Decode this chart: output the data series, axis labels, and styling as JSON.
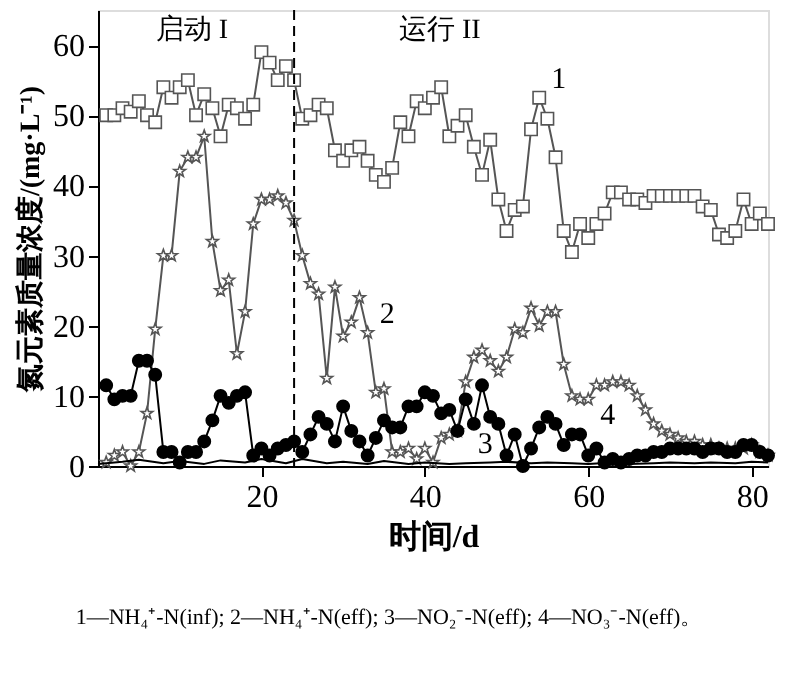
{
  "chart_data": {
    "type": "line",
    "xlabel": "时间/d",
    "ylabel": "氮元素质量浓度/(mg·L⁻¹)",
    "xlim": [
      0,
      82
    ],
    "ylim": [
      0,
      65
    ],
    "xticks": [
      20,
      40,
      60,
      80
    ],
    "yticks": [
      0,
      10,
      20,
      30,
      40,
      50,
      60
    ],
    "grid": false,
    "line_style": "solid",
    "ref_lines": [
      {
        "axis": "x",
        "value": 24,
        "line_style": "dashed",
        "color": "#000000"
      }
    ],
    "annotations": [
      "启动 I",
      "运行 II",
      {
        "text": "1",
        "x": 54,
        "y": 52.5
      },
      {
        "text": "2",
        "x": 33,
        "y": 19
      },
      {
        "text": "3",
        "x": 45,
        "y": 0.4
      },
      {
        "text": "4",
        "x": 60,
        "y": 4.5
      },
      "1—NH₄⁺-N(inf); 2—NH₄⁺-N(eff); 3—NO₂⁻-N(eff); 4—NO₃⁻-N(eff)。"
    ],
    "series": [
      {
        "color": "#555555",
        "marker": "square",
        "x": [
          1,
          2,
          3,
          4,
          5,
          6,
          7,
          8,
          9,
          10,
          11,
          12,
          13,
          14,
          15,
          16,
          17,
          18,
          19,
          20,
          21,
          22,
          23,
          24,
          25,
          26,
          27,
          28,
          29,
          30,
          31,
          32,
          33,
          34,
          35,
          36,
          37,
          38,
          39,
          40,
          41,
          42,
          43,
          44,
          45,
          46,
          47,
          48,
          49,
          50,
          51,
          52,
          53,
          54,
          55,
          56,
          57,
          58,
          59,
          60,
          61,
          62,
          63,
          64,
          65,
          66,
          67,
          68,
          69,
          70,
          71,
          72,
          73,
          74,
          75,
          76,
          77,
          78,
          79,
          80,
          81,
          82
        ],
        "values": [
          50,
          50,
          51,
          50.5,
          52,
          50,
          49,
          54,
          52.5,
          54,
          55,
          50,
          53,
          51,
          47,
          51.5,
          51,
          49.5,
          51.5,
          59,
          57.5,
          55,
          57,
          55,
          49.5,
          50,
          51.5,
          51,
          45,
          43.5,
          45,
          45.5,
          43.5,
          41.5,
          40.5,
          42.5,
          49,
          47,
          52,
          51,
          52.5,
          54,
          47,
          48.5,
          50,
          45.5,
          41.5,
          46.5,
          38,
          33.5,
          36.5,
          37,
          48,
          52.5,
          49.5,
          44,
          33.5,
          30.5,
          34.5,
          32.5,
          34.5,
          36,
          39,
          39,
          38,
          38,
          37.5,
          38.5,
          38.5,
          38.5,
          38.5,
          38.5,
          38.5,
          37,
          36.5,
          33,
          32.5,
          33.5,
          38,
          34.5,
          36,
          34.5
        ]
      },
      {
        "color": "#555555",
        "marker": "star",
        "x": [
          1,
          2,
          3,
          4,
          5,
          6,
          7,
          8,
          9,
          10,
          11,
          12,
          13,
          14,
          15,
          16,
          17,
          18,
          19,
          20,
          21,
          22,
          23,
          24,
          25,
          26,
          27,
          28,
          29,
          30,
          31,
          32,
          33,
          34,
          35,
          36,
          37,
          38,
          39,
          40,
          41,
          42,
          43,
          44,
          45,
          46,
          47,
          48,
          49,
          50,
          51,
          52,
          53,
          54,
          55,
          56,
          57,
          58,
          59,
          60,
          61,
          62,
          63,
          64,
          65,
          66,
          67,
          68,
          69,
          70,
          71,
          72,
          73,
          74,
          75,
          76,
          77,
          78,
          79,
          80,
          81,
          82
        ],
        "values": [
          0.5,
          1.5,
          2,
          0,
          2,
          7.5,
          19.5,
          30,
          30,
          42,
          44,
          44,
          47,
          32,
          25,
          26.5,
          16,
          22,
          34.5,
          38,
          38,
          38.5,
          37.5,
          35,
          30,
          26,
          24.5,
          12.5,
          25.5,
          18.5,
          20.5,
          24,
          19,
          10.5,
          11,
          2,
          2,
          2.5,
          1,
          2.5,
          0.5,
          4,
          4.5,
          5,
          12,
          15.5,
          16.5,
          15,
          13.5,
          15.5,
          19.5,
          19,
          22.5,
          20,
          22,
          22,
          14.5,
          10,
          9.5,
          9.5,
          11.5,
          11.5,
          12,
          12,
          11.5,
          10,
          8,
          6,
          5,
          4.5,
          4,
          3.5,
          3.5,
          3,
          3,
          2.5,
          2.5,
          2.5,
          2.5,
          3,
          2,
          1.5
        ]
      },
      {
        "color": "#000000",
        "marker": "none",
        "x": [
          0,
          3,
          5,
          8,
          10,
          13,
          15,
          18,
          20,
          23,
          25,
          28,
          30,
          33,
          35,
          38,
          40,
          43,
          45,
          48,
          50,
          53,
          55,
          58,
          60,
          63,
          65,
          68,
          70,
          73,
          75,
          78,
          80,
          82
        ],
        "values": [
          0.3,
          0.6,
          0.9,
          0.4,
          0.7,
          0.3,
          0.8,
          0.5,
          1,
          0.4,
          1,
          0.4,
          0.6,
          0.3,
          0.7,
          0.3,
          0.5,
          0.3,
          0.4,
          0.5,
          0.6,
          0.4,
          0.5,
          0.4,
          0.3,
          0.5,
          0.3,
          0.4,
          0.5,
          0.4,
          0.5,
          0.4,
          0.6,
          0.5
        ]
      },
      {
        "color": "#000000",
        "marker": "circle",
        "x": [
          1,
          2,
          3,
          4,
          5,
          6,
          7,
          8,
          9,
          10,
          11,
          12,
          13,
          14,
          15,
          16,
          17,
          18,
          19,
          20,
          21,
          22,
          23,
          24,
          25,
          26,
          27,
          28,
          29,
          30,
          31,
          32,
          33,
          34,
          35,
          36,
          37,
          38,
          39,
          40,
          41,
          42,
          43,
          44,
          45,
          46,
          47,
          48,
          49,
          50,
          51,
          52,
          53,
          54,
          55,
          56,
          57,
          58,
          59,
          60,
          61,
          62,
          63,
          64,
          65,
          66,
          67,
          68,
          69,
          70,
          71,
          72,
          73,
          74,
          75,
          76,
          77,
          78,
          79,
          80,
          81,
          82
        ],
        "values": [
          11.5,
          9.5,
          10,
          10,
          15,
          15,
          13,
          2,
          2,
          0.5,
          2,
          2,
          3.5,
          6.5,
          10,
          9,
          10,
          10.5,
          1.5,
          2.5,
          1.5,
          2.5,
          3,
          3.5,
          2,
          4.5,
          7,
          6,
          3.5,
          8.5,
          5,
          3.5,
          1.5,
          4,
          6.5,
          5.5,
          5.5,
          8.5,
          8.5,
          10.5,
          10,
          7.5,
          8,
          5,
          9.5,
          6,
          11.5,
          7,
          6,
          1.5,
          4.5,
          0,
          2.5,
          5.5,
          7,
          6,
          3,
          4.5,
          4.5,
          1.5,
          2.5,
          0.5,
          1,
          0.5,
          1,
          1.5,
          1.5,
          2,
          2,
          2.5,
          2.5,
          2.5,
          2.5,
          2,
          2.5,
          2.5,
          2,
          2,
          3,
          3,
          2,
          1.5
        ]
      }
    ]
  }
}
